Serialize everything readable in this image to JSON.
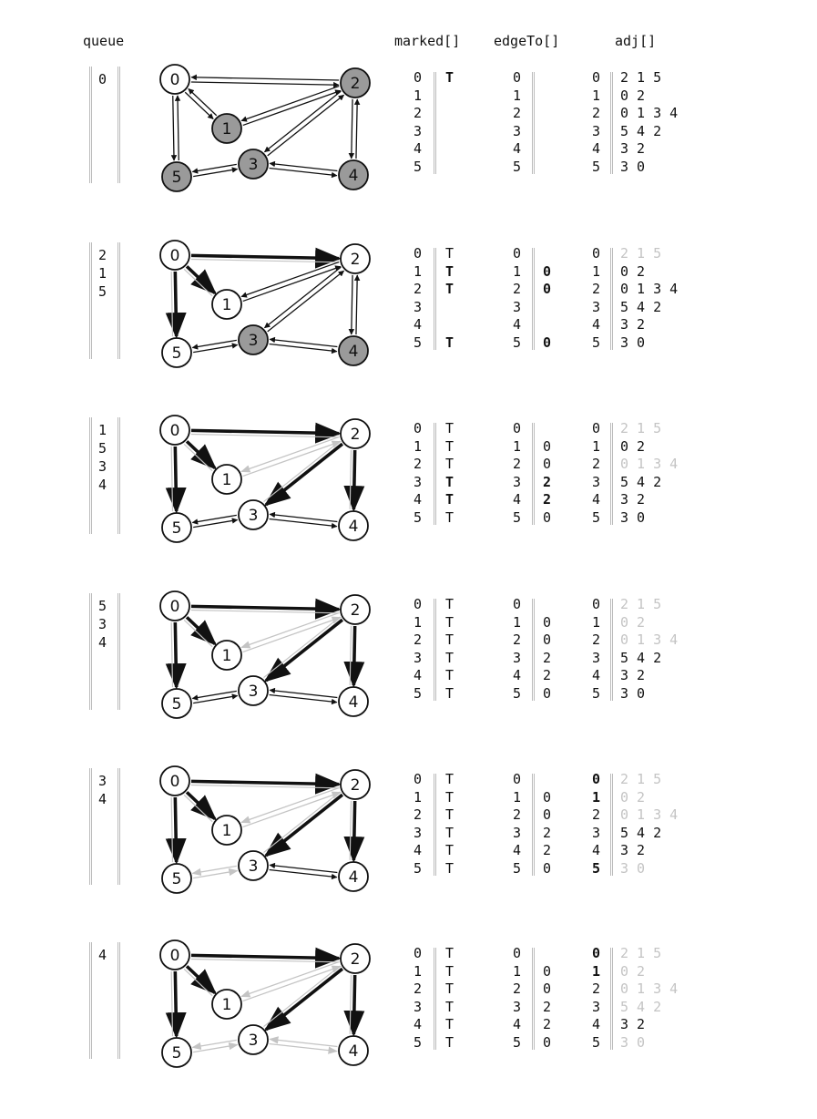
{
  "headers": {
    "queue": "queue",
    "marked": "marked[]",
    "edgeTo": "edgeTo[]",
    "adj": "adj[]"
  },
  "colors": {
    "node_gray": "#9a9a9a",
    "edge_dark": "#111111",
    "edge_light": "#c4c4c4"
  },
  "graph": {
    "nodes": [
      "0",
      "1",
      "2",
      "3",
      "4",
      "5"
    ],
    "edges": [
      [
        "0",
        "2"
      ],
      [
        "0",
        "1"
      ],
      [
        "0",
        "5"
      ],
      [
        "1",
        "2"
      ],
      [
        "2",
        "3"
      ],
      [
        "2",
        "4"
      ],
      [
        "3",
        "4"
      ],
      [
        "3",
        "5"
      ]
    ]
  },
  "stages": [
    {
      "queue": [
        "0"
      ],
      "gray_nodes": [
        "1",
        "2",
        "3",
        "4",
        "5"
      ],
      "tree_edges": [],
      "checked_edges": [],
      "marked": [
        "T",
        "",
        "",
        "",
        "",
        ""
      ],
      "marked_bold": [
        0
      ],
      "edgeTo": [
        "",
        "",
        "",
        "",
        "",
        ""
      ],
      "edgeTo_bold": [],
      "adj": [
        "2 1 5",
        "0 2",
        "0 1 3 4",
        "5 4 2",
        "3 2",
        "3 0"
      ],
      "adj_faded": [],
      "adj_bold_index": []
    },
    {
      "queue": [
        "2",
        "1",
        "5"
      ],
      "gray_nodes": [
        "3",
        "4"
      ],
      "tree_edges": [
        [
          "0",
          "2"
        ],
        [
          "0",
          "1"
        ],
        [
          "0",
          "5"
        ]
      ],
      "checked_edges": [],
      "marked": [
        "T",
        "T",
        "T",
        "",
        "",
        "T"
      ],
      "marked_bold": [
        1,
        2,
        5
      ],
      "edgeTo": [
        "",
        "0",
        "0",
        "",
        "",
        "0"
      ],
      "edgeTo_bold": [
        1,
        2,
        5
      ],
      "adj": [
        "2 1 5",
        "0 2",
        "0 1 3 4",
        "5 4 2",
        "3 2",
        "3 0"
      ],
      "adj_faded": [
        0
      ],
      "adj_bold_index": []
    },
    {
      "queue": [
        "1",
        "5",
        "3",
        "4"
      ],
      "gray_nodes": [],
      "tree_edges": [
        [
          "0",
          "2"
        ],
        [
          "0",
          "1"
        ],
        [
          "0",
          "5"
        ],
        [
          "2",
          "3"
        ],
        [
          "2",
          "4"
        ]
      ],
      "checked_edges": [
        [
          "1",
          "2"
        ]
      ],
      "marked": [
        "T",
        "T",
        "T",
        "T",
        "T",
        "T"
      ],
      "marked_bold": [
        3,
        4
      ],
      "edgeTo": [
        "",
        "0",
        "0",
        "2",
        "2",
        "0"
      ],
      "edgeTo_bold": [
        3,
        4
      ],
      "adj": [
        "2 1 5",
        "0 2",
        "0 1 3 4",
        "5 4 2",
        "3 2",
        "3 0"
      ],
      "adj_faded": [
        0,
        2
      ],
      "adj_bold_index": []
    },
    {
      "queue": [
        "5",
        "3",
        "4"
      ],
      "gray_nodes": [],
      "tree_edges": [
        [
          "0",
          "2"
        ],
        [
          "0",
          "1"
        ],
        [
          "0",
          "5"
        ],
        [
          "2",
          "3"
        ],
        [
          "2",
          "4"
        ]
      ],
      "checked_edges": [
        [
          "1",
          "2"
        ]
      ],
      "marked": [
        "T",
        "T",
        "T",
        "T",
        "T",
        "T"
      ],
      "marked_bold": [],
      "edgeTo": [
        "",
        "0",
        "0",
        "2",
        "2",
        "0"
      ],
      "edgeTo_bold": [],
      "adj": [
        "2 1 5",
        "0 2",
        "0 1 3 4",
        "5 4 2",
        "3 2",
        "3 0"
      ],
      "adj_faded": [
        0,
        1,
        2
      ],
      "adj_bold_index": []
    },
    {
      "queue": [
        "3",
        "4"
      ],
      "gray_nodes": [],
      "tree_edges": [
        [
          "0",
          "2"
        ],
        [
          "0",
          "1"
        ],
        [
          "0",
          "5"
        ],
        [
          "2",
          "3"
        ],
        [
          "2",
          "4"
        ]
      ],
      "checked_edges": [
        [
          "1",
          "2"
        ],
        [
          "3",
          "5"
        ]
      ],
      "marked": [
        "T",
        "T",
        "T",
        "T",
        "T",
        "T"
      ],
      "marked_bold": [],
      "edgeTo": [
        "",
        "0",
        "0",
        "2",
        "2",
        "0"
      ],
      "edgeTo_bold": [],
      "adj": [
        "2 1 5",
        "0 2",
        "0 1 3 4",
        "5 4 2",
        "3 2",
        "3 0"
      ],
      "adj_faded": [
        0,
        1,
        2,
        5
      ],
      "adj_bold_index": [
        0,
        1,
        5
      ]
    },
    {
      "queue": [
        "4"
      ],
      "gray_nodes": [],
      "tree_edges": [
        [
          "0",
          "2"
        ],
        [
          "0",
          "1"
        ],
        [
          "0",
          "5"
        ],
        [
          "2",
          "3"
        ],
        [
          "2",
          "4"
        ]
      ],
      "checked_edges": [
        [
          "1",
          "2"
        ],
        [
          "3",
          "5"
        ],
        [
          "3",
          "4"
        ]
      ],
      "marked": [
        "T",
        "T",
        "T",
        "T",
        "T",
        "T"
      ],
      "marked_bold": [],
      "edgeTo": [
        "",
        "0",
        "0",
        "2",
        "2",
        "0"
      ],
      "edgeTo_bold": [],
      "adj": [
        "2 1 5",
        "0 2",
        "0 1 3 4",
        "5 4 2",
        "3 2",
        "3 0"
      ],
      "adj_faded": [
        0,
        1,
        2,
        3,
        5
      ],
      "adj_bold_index": [
        0,
        1
      ]
    }
  ]
}
